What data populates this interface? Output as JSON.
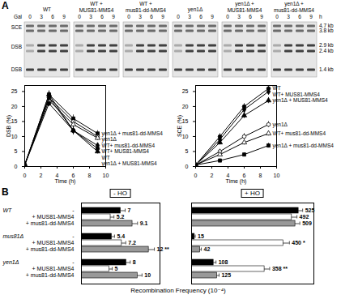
{
  "panel_labels": [
    "A",
    "B"
  ],
  "gels": {
    "time_label": "Gal",
    "times": [
      0,
      3,
      6,
      9
    ],
    "unit": "h",
    "row_labels": [
      "SCE",
      "DSB",
      "DSB"
    ],
    "size_labels": [
      "4.7 kb",
      "3.8 kb",
      "2.9 kb",
      "2.4 kb",
      "1.4 kb"
    ],
    "strains": [
      "WT",
      "WT + MUS81-MMS4",
      "WT + mus81-dd-MMS4",
      "yen1Δ",
      "yen1Δ + MUS81-MMS4",
      "yen1Δ + mus81-dd-MMS4"
    ]
  },
  "chart_data": [
    {
      "type": "line",
      "xlabel": "Time (h)",
      "ylabel": "DSB (%)",
      "x": [
        0,
        3,
        6,
        9
      ],
      "xlim": [
        0,
        10
      ],
      "xticks": [
        0,
        2,
        4,
        6,
        8,
        10
      ],
      "ylim": [
        0,
        27
      ],
      "yticks": [
        0,
        5,
        10,
        15,
        20,
        25
      ],
      "series": [
        {
          "name": "yen1Δ + mus81-dd-MMS4",
          "color": "#000000",
          "marker": "square",
          "values": [
            0.5,
            24,
            16,
            11
          ],
          "errors": [
            0.3,
            1.2,
            1.2,
            1
          ]
        },
        {
          "name": "yen1Δ",
          "color": "#000000",
          "marker": "circle-open",
          "values": [
            0.5,
            23,
            15,
            10
          ],
          "errors": [
            0.3,
            1,
            1.2,
            1
          ]
        },
        {
          "name": "WT+ mus81-dd-MMS4",
          "color": "#000000",
          "marker": "triangle-open",
          "values": [
            0.5,
            22,
            14,
            9.5
          ],
          "errors": [
            0.3,
            1,
            1,
            0.8
          ]
        },
        {
          "name": "WT+ MUS81-MMS4",
          "color": "#000000",
          "marker": "diamond",
          "values": [
            0.5,
            23,
            12,
            7
          ],
          "errors": [
            0.3,
            1.2,
            1,
            0.8
          ]
        },
        {
          "name": "WT",
          "color": "#000000",
          "marker": "circle",
          "values": [
            0.5,
            21,
            12,
            6
          ],
          "errors": [
            0.3,
            1,
            1.5,
            1
          ]
        },
        {
          "name": "yen1Δ + MUS81-MMS4",
          "color": "#000000",
          "marker": "triangle",
          "values": [
            0.5,
            24,
            12,
            5
          ],
          "errors": [
            0.3,
            1.2,
            1,
            0.8
          ]
        }
      ]
    },
    {
      "type": "line",
      "xlabel": "Time (h)",
      "ylabel": "SCE (%)",
      "x": [
        0,
        3,
        6,
        9
      ],
      "xlim": [
        0,
        10
      ],
      "xticks": [
        0,
        2,
        4,
        6,
        8,
        10
      ],
      "ylim": [
        0,
        27
      ],
      "yticks": [
        0,
        5,
        10,
        15,
        20,
        25
      ],
      "series": [
        {
          "name": "WT",
          "color": "#000000",
          "marker": "circle",
          "values": [
            0.5,
            10,
            20,
            26
          ],
          "errors": [
            0.3,
            1,
            1,
            1
          ]
        },
        {
          "name": "WT+ MUS81-MMS4",
          "color": "#000000",
          "marker": "diamond",
          "values": [
            0.5,
            9,
            19,
            25
          ],
          "errors": [
            0.3,
            0.8,
            1,
            1
          ]
        },
        {
          "name": "yen1Δ + MUS81-MMS4",
          "color": "#000000",
          "marker": "triangle",
          "values": [
            0.5,
            8,
            17,
            22
          ],
          "errors": [
            0.3,
            0.8,
            1,
            1
          ]
        },
        {
          "name": "yen1Δ",
          "color": "#000000",
          "marker": "circle-open",
          "values": [
            0.5,
            5,
            10,
            14
          ],
          "errors": [
            0.3,
            0.8,
            1,
            1
          ]
        },
        {
          "name": "WT+ mus81-dd-MMS4",
          "color": "#000000",
          "marker": "triangle-open",
          "values": [
            0.5,
            4,
            8,
            11
          ],
          "errors": [
            0.3,
            0.6,
            0.8,
            0.8
          ]
        },
        {
          "name": "yen1Δ + mus81-dd-MMS4",
          "color": "#000000",
          "marker": "square",
          "values": [
            0.5,
            2,
            4,
            7
          ],
          "errors": [
            0.3,
            0.5,
            0.6,
            0.8
          ]
        }
      ]
    },
    {
      "type": "bar",
      "orientation": "horizontal",
      "data_labels": true,
      "tick_labels": "y",
      "xlabel": "Recombination Frequency (10⁻⁴)",
      "groups": [
        "WT",
        "mus81Δ",
        "yen1Δ"
      ],
      "categories": [
        "-",
        "+ MUS81-MMS4",
        "+ mus81-dd-MMS4"
      ],
      "colors": [
        "#000000",
        "#ffffff",
        "#999999"
      ],
      "panels": [
        {
          "title": "- HO",
          "xlim": [
            0,
            14
          ],
          "values": [
            [
              7,
              5.2,
              9.1
            ],
            [
              5.4,
              7.2,
              12
            ],
            [
              8,
              5,
              10
            ]
          ],
          "errors": [
            [
              0.8,
              0.6,
              0.9
            ],
            [
              0.5,
              0.7,
              1
            ],
            [
              0.7,
              0.5,
              0.8
            ]
          ],
          "value_labels": [
            [
              "7",
              "5.2",
              "9.1"
            ],
            [
              "5.4",
              "7.2",
              "12 **"
            ],
            [
              "8",
              "5",
              "10"
            ]
          ]
        },
        {
          "title": "+ HO",
          "xlim": [
            0,
            600
          ],
          "values": [
            [
              525,
              492,
              509
            ],
            [
              15,
              450,
              42
            ],
            [
              108,
              358,
              125
            ]
          ],
          "errors": [
            [
              20,
              25,
              22
            ],
            [
              3,
              30,
              6
            ],
            [
              12,
              25,
              10
            ]
          ],
          "value_labels": [
            [
              "525",
              "492",
              "509"
            ],
            [
              "15",
              "450 *",
              "42"
            ],
            [
              "108",
              "358 **",
              "125"
            ]
          ]
        }
      ]
    }
  ]
}
